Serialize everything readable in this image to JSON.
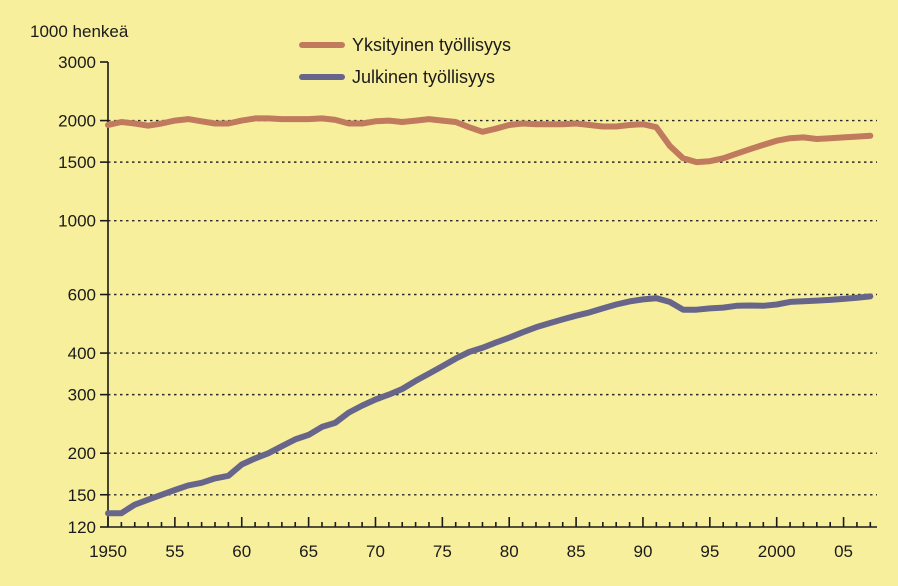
{
  "chart_data": {
    "type": "line",
    "title": "",
    "ylabel": "1000 henkeä",
    "xlabel": "",
    "y_scale": "log",
    "xlim": [
      1950,
      2007.5
    ],
    "ylim": [
      120,
      3000
    ],
    "grid": "horizontal-dotted",
    "legend_position": "top-center",
    "y_ticks": [
      {
        "value": 120,
        "label": "120"
      },
      {
        "value": 150,
        "label": "150"
      },
      {
        "value": 200,
        "label": "200"
      },
      {
        "value": 300,
        "label": "300"
      },
      {
        "value": 400,
        "label": "400"
      },
      {
        "value": 600,
        "label": "600"
      },
      {
        "value": 1000,
        "label": "1000"
      },
      {
        "value": 1500,
        "label": "1500"
      },
      {
        "value": 2000,
        "label": "2000"
      },
      {
        "value": 3000,
        "label": "3000"
      }
    ],
    "gridline_values": [
      150,
      200,
      300,
      400,
      600,
      1000,
      1500,
      2000
    ],
    "x_ticks": [
      {
        "value": 1950,
        "label": "1950"
      },
      {
        "value": 1955,
        "label": "55"
      },
      {
        "value": 1960,
        "label": "60"
      },
      {
        "value": 1965,
        "label": "65"
      },
      {
        "value": 1970,
        "label": "70"
      },
      {
        "value": 1975,
        "label": "75"
      },
      {
        "value": 1980,
        "label": "80"
      },
      {
        "value": 1985,
        "label": "85"
      },
      {
        "value": 1990,
        "label": "90"
      },
      {
        "value": 1995,
        "label": "95"
      },
      {
        "value": 2000,
        "label": "2000"
      },
      {
        "value": 2005,
        "label": "05"
      }
    ],
    "series": [
      {
        "name": "Yksityinen työllisyys",
        "color": "#c07a5e",
        "points": [
          [
            1950,
            1940
          ],
          [
            1951,
            1980
          ],
          [
            1952,
            1960
          ],
          [
            1953,
            1930
          ],
          [
            1954,
            1960
          ],
          [
            1955,
            2000
          ],
          [
            1956,
            2020
          ],
          [
            1957,
            1990
          ],
          [
            1958,
            1960
          ],
          [
            1959,
            1960
          ],
          [
            1960,
            2000
          ],
          [
            1961,
            2030
          ],
          [
            1962,
            2030
          ],
          [
            1963,
            2020
          ],
          [
            1964,
            2020
          ],
          [
            1965,
            2020
          ],
          [
            1966,
            2030
          ],
          [
            1967,
            2010
          ],
          [
            1968,
            1960
          ],
          [
            1969,
            1960
          ],
          [
            1970,
            1990
          ],
          [
            1971,
            2000
          ],
          [
            1972,
            1980
          ],
          [
            1973,
            2000
          ],
          [
            1974,
            2020
          ],
          [
            1975,
            2000
          ],
          [
            1976,
            1980
          ],
          [
            1977,
            1910
          ],
          [
            1978,
            1850
          ],
          [
            1979,
            1890
          ],
          [
            1980,
            1940
          ],
          [
            1981,
            1960
          ],
          [
            1982,
            1950
          ],
          [
            1983,
            1950
          ],
          [
            1984,
            1950
          ],
          [
            1985,
            1960
          ],
          [
            1986,
            1940
          ],
          [
            1987,
            1920
          ],
          [
            1988,
            1920
          ],
          [
            1989,
            1940
          ],
          [
            1990,
            1950
          ],
          [
            1991,
            1910
          ],
          [
            1992,
            1680
          ],
          [
            1993,
            1540
          ],
          [
            1994,
            1500
          ],
          [
            1995,
            1510
          ],
          [
            1996,
            1540
          ],
          [
            1997,
            1590
          ],
          [
            1998,
            1640
          ],
          [
            1999,
            1690
          ],
          [
            2000,
            1740
          ],
          [
            2001,
            1770
          ],
          [
            2002,
            1780
          ],
          [
            2003,
            1760
          ],
          [
            2004,
            1770
          ],
          [
            2005,
            1780
          ],
          [
            2006,
            1790
          ],
          [
            2007,
            1800
          ]
        ]
      },
      {
        "name": "Julkinen työllisyys",
        "color": "#67668a",
        "points": [
          [
            1950,
            132
          ],
          [
            1951,
            132
          ],
          [
            1952,
            140
          ],
          [
            1953,
            145
          ],
          [
            1954,
            150
          ],
          [
            1955,
            155
          ],
          [
            1956,
            160
          ],
          [
            1957,
            163
          ],
          [
            1958,
            168
          ],
          [
            1959,
            171
          ],
          [
            1960,
            185
          ],
          [
            1961,
            193
          ],
          [
            1962,
            200
          ],
          [
            1963,
            210
          ],
          [
            1964,
            220
          ],
          [
            1965,
            227
          ],
          [
            1966,
            240
          ],
          [
            1967,
            247
          ],
          [
            1968,
            265
          ],
          [
            1969,
            278
          ],
          [
            1970,
            290
          ],
          [
            1971,
            300
          ],
          [
            1972,
            312
          ],
          [
            1973,
            330
          ],
          [
            1974,
            347
          ],
          [
            1975,
            365
          ],
          [
            1976,
            385
          ],
          [
            1977,
            403
          ],
          [
            1978,
            415
          ],
          [
            1979,
            430
          ],
          [
            1980,
            445
          ],
          [
            1981,
            462
          ],
          [
            1982,
            478
          ],
          [
            1983,
            492
          ],
          [
            1984,
            505
          ],
          [
            1985,
            518
          ],
          [
            1986,
            530
          ],
          [
            1987,
            545
          ],
          [
            1988,
            560
          ],
          [
            1989,
            572
          ],
          [
            1990,
            580
          ],
          [
            1991,
            585
          ],
          [
            1992,
            570
          ],
          [
            1993,
            540
          ],
          [
            1994,
            540
          ],
          [
            1995,
            545
          ],
          [
            1996,
            548
          ],
          [
            1997,
            555
          ],
          [
            1998,
            556
          ],
          [
            1999,
            555
          ],
          [
            2000,
            560
          ],
          [
            2001,
            570
          ],
          [
            2002,
            573
          ],
          [
            2003,
            575
          ],
          [
            2004,
            578
          ],
          [
            2005,
            582
          ],
          [
            2006,
            587
          ],
          [
            2007,
            592
          ]
        ]
      }
    ]
  }
}
